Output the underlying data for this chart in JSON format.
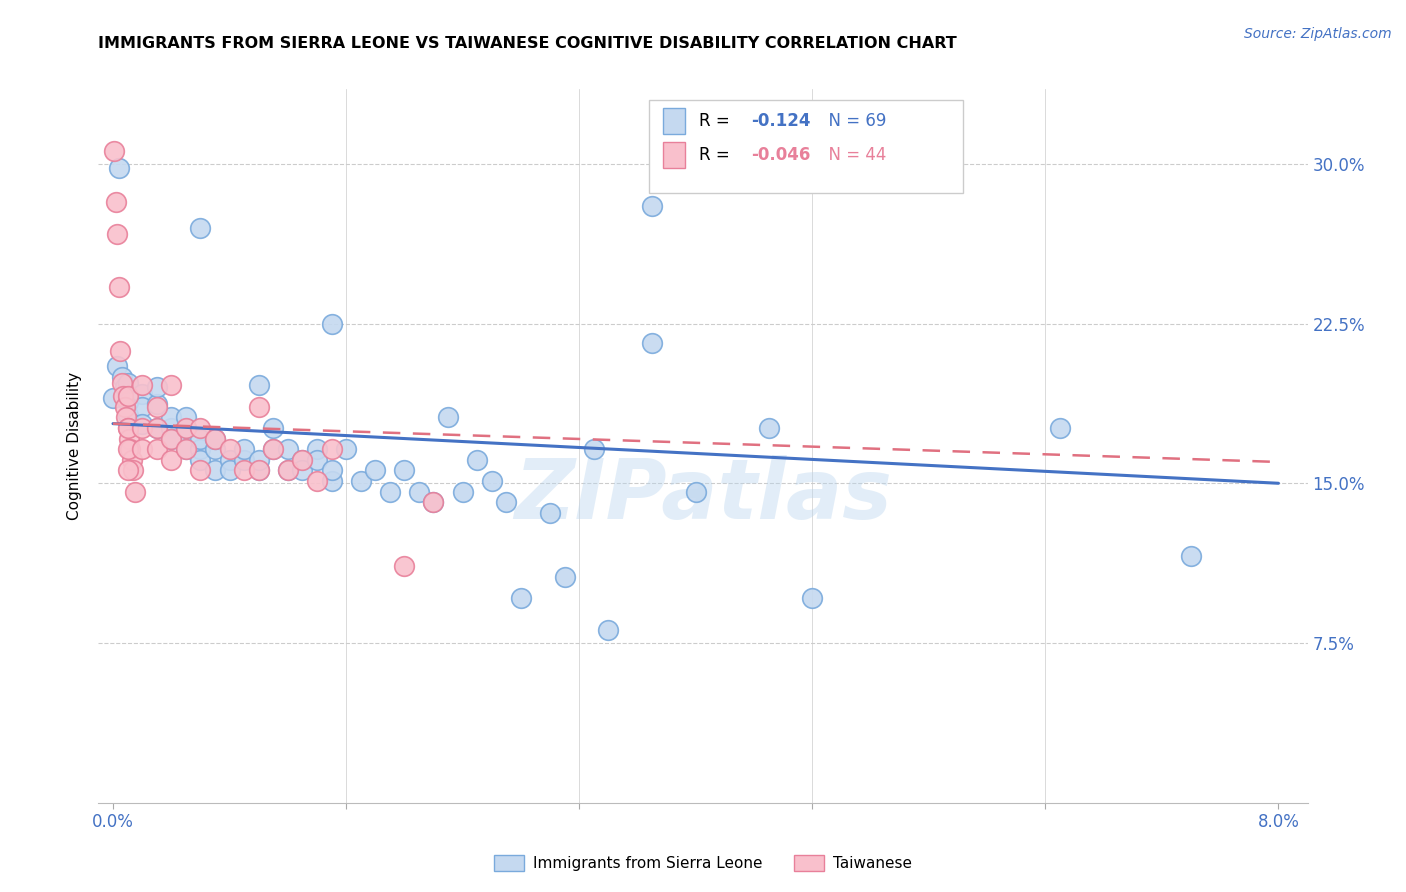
{
  "title": "IMMIGRANTS FROM SIERRA LEONE VS TAIWANESE COGNITIVE DISABILITY CORRELATION CHART",
  "source": "Source: ZipAtlas.com",
  "ylabel": "Cognitive Disability",
  "yticks_labels": [
    "7.5%",
    "15.0%",
    "22.5%",
    "30.0%"
  ],
  "ytick_vals": [
    0.075,
    0.15,
    0.225,
    0.3
  ],
  "xlim": [
    -0.001,
    0.082
  ],
  "ylim": [
    0.0,
    0.335
  ],
  "color_blue_fill": "#c5d9f0",
  "color_blue_edge": "#7aaadc",
  "color_pink_fill": "#f9c0cc",
  "color_pink_edge": "#e8809a",
  "color_blue_line": "#4472c4",
  "color_pink_line": "#e07080",
  "watermark": "ZIPatlas",
  "blue_scatter": [
    [
      0.0004,
      0.298
    ],
    [
      0.006,
      0.27
    ],
    [
      0.0,
      0.19
    ],
    [
      0.015,
      0.225
    ],
    [
      0.037,
      0.28
    ],
    [
      0.0003,
      0.205
    ],
    [
      0.0006,
      0.2
    ],
    [
      0.0008,
      0.195
    ],
    [
      0.001,
      0.197
    ],
    [
      0.001,
      0.188
    ],
    [
      0.001,
      0.182
    ],
    [
      0.002,
      0.192
    ],
    [
      0.002,
      0.186
    ],
    [
      0.002,
      0.178
    ],
    [
      0.003,
      0.187
    ],
    [
      0.003,
      0.176
    ],
    [
      0.003,
      0.195
    ],
    [
      0.004,
      0.176
    ],
    [
      0.004,
      0.181
    ],
    [
      0.004,
      0.171
    ],
    [
      0.005,
      0.176
    ],
    [
      0.005,
      0.166
    ],
    [
      0.005,
      0.181
    ],
    [
      0.006,
      0.166
    ],
    [
      0.006,
      0.171
    ],
    [
      0.006,
      0.161
    ],
    [
      0.007,
      0.166
    ],
    [
      0.007,
      0.156
    ],
    [
      0.007,
      0.171
    ],
    [
      0.008,
      0.161
    ],
    [
      0.008,
      0.156
    ],
    [
      0.009,
      0.161
    ],
    [
      0.009,
      0.166
    ],
    [
      0.01,
      0.156
    ],
    [
      0.01,
      0.161
    ],
    [
      0.01,
      0.196
    ],
    [
      0.011,
      0.166
    ],
    [
      0.011,
      0.176
    ],
    [
      0.012,
      0.166
    ],
    [
      0.012,
      0.156
    ],
    [
      0.013,
      0.161
    ],
    [
      0.013,
      0.156
    ],
    [
      0.014,
      0.166
    ],
    [
      0.014,
      0.161
    ],
    [
      0.015,
      0.151
    ],
    [
      0.015,
      0.156
    ],
    [
      0.016,
      0.166
    ],
    [
      0.017,
      0.151
    ],
    [
      0.018,
      0.156
    ],
    [
      0.019,
      0.146
    ],
    [
      0.02,
      0.156
    ],
    [
      0.021,
      0.146
    ],
    [
      0.022,
      0.141
    ],
    [
      0.023,
      0.181
    ],
    [
      0.024,
      0.146
    ],
    [
      0.025,
      0.161
    ],
    [
      0.026,
      0.151
    ],
    [
      0.027,
      0.141
    ],
    [
      0.028,
      0.096
    ],
    [
      0.03,
      0.136
    ],
    [
      0.031,
      0.106
    ],
    [
      0.033,
      0.166
    ],
    [
      0.034,
      0.081
    ],
    [
      0.037,
      0.216
    ],
    [
      0.04,
      0.146
    ],
    [
      0.045,
      0.176
    ],
    [
      0.048,
      0.096
    ],
    [
      0.065,
      0.176
    ],
    [
      0.074,
      0.116
    ]
  ],
  "pink_scatter": [
    [
      0.0001,
      0.306
    ],
    [
      0.0002,
      0.282
    ],
    [
      0.0003,
      0.267
    ],
    [
      0.0004,
      0.242
    ],
    [
      0.0005,
      0.212
    ],
    [
      0.0006,
      0.197
    ],
    [
      0.0007,
      0.191
    ],
    [
      0.0008,
      0.186
    ],
    [
      0.0009,
      0.181
    ],
    [
      0.001,
      0.176
    ],
    [
      0.0011,
      0.171
    ],
    [
      0.0012,
      0.166
    ],
    [
      0.0013,
      0.161
    ],
    [
      0.0014,
      0.156
    ],
    [
      0.0015,
      0.146
    ],
    [
      0.001,
      0.191
    ],
    [
      0.001,
      0.176
    ],
    [
      0.001,
      0.166
    ],
    [
      0.001,
      0.156
    ],
    [
      0.002,
      0.196
    ],
    [
      0.002,
      0.176
    ],
    [
      0.002,
      0.166
    ],
    [
      0.003,
      0.186
    ],
    [
      0.003,
      0.176
    ],
    [
      0.003,
      0.166
    ],
    [
      0.004,
      0.196
    ],
    [
      0.004,
      0.171
    ],
    [
      0.004,
      0.161
    ],
    [
      0.005,
      0.176
    ],
    [
      0.005,
      0.166
    ],
    [
      0.006,
      0.176
    ],
    [
      0.006,
      0.156
    ],
    [
      0.007,
      0.171
    ],
    [
      0.008,
      0.166
    ],
    [
      0.009,
      0.156
    ],
    [
      0.01,
      0.186
    ],
    [
      0.01,
      0.156
    ],
    [
      0.011,
      0.166
    ],
    [
      0.012,
      0.156
    ],
    [
      0.013,
      0.161
    ],
    [
      0.014,
      0.151
    ],
    [
      0.015,
      0.166
    ],
    [
      0.02,
      0.111
    ],
    [
      0.022,
      0.141
    ]
  ],
  "blue_line_x": [
    0.0,
    0.08
  ],
  "blue_line_y": [
    0.178,
    0.15
  ],
  "pink_line_x": [
    0.0,
    0.08
  ],
  "pink_line_y": [
    0.178,
    0.16
  ]
}
